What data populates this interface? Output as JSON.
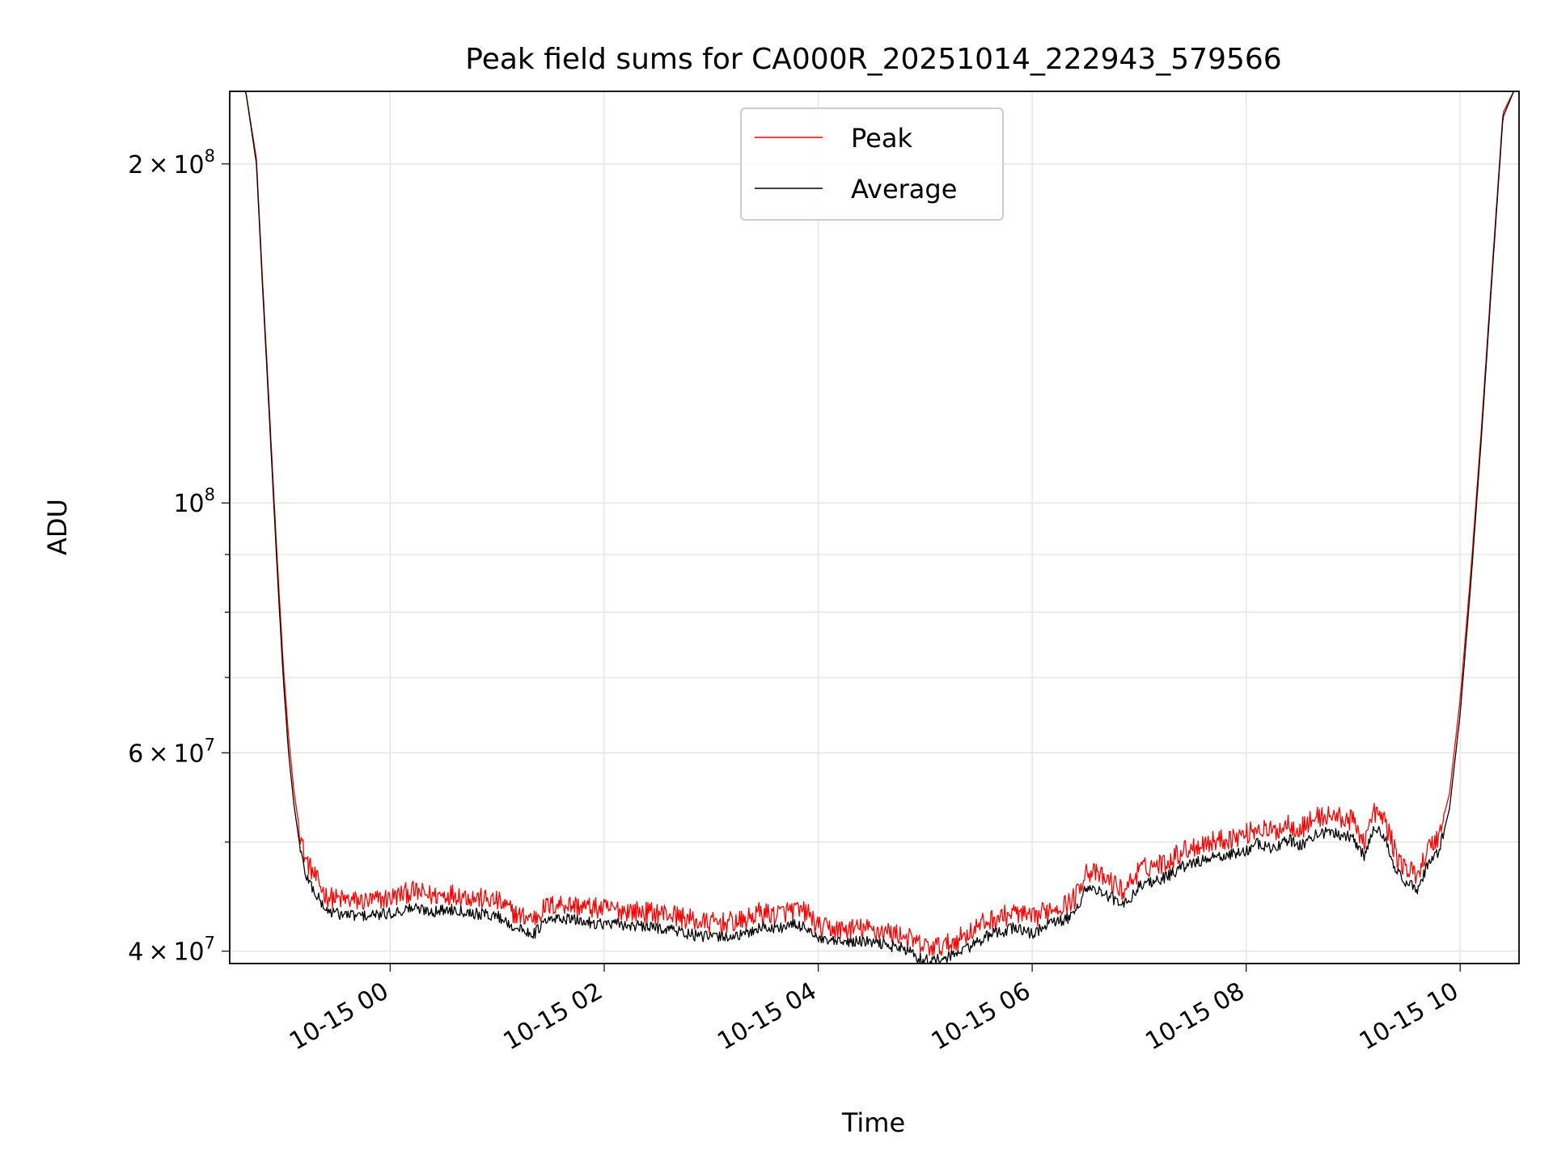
{
  "chart_data": {
    "type": "line",
    "title": "Peak field sums for CA000R_20251014_222943_579566",
    "xlabel": "Time",
    "ylabel": "ADU",
    "yscale": "log",
    "ylim": [
      39000000,
      232000000
    ],
    "xlim_hours": [
      -1.5,
      10.55
    ],
    "grid": true,
    "legend": {
      "placement": "upper center",
      "entries": [
        {
          "label": "Peak",
          "color": "#ff0000"
        },
        {
          "label": "Average",
          "color": "#000000"
        }
      ]
    },
    "x_ticks": [
      {
        "hours": 0,
        "label": "10-15 00"
      },
      {
        "hours": 2,
        "label": "10-15 02"
      },
      {
        "hours": 4,
        "label": "10-15 04"
      },
      {
        "hours": 6,
        "label": "10-15 06"
      },
      {
        "hours": 8,
        "label": "10-15 08"
      },
      {
        "hours": 10,
        "label": "10-15 10"
      }
    ],
    "y_major_ticks": [
      {
        "value": 40000000,
        "mantissa": "4",
        "exponent": "7"
      },
      {
        "value": 60000000,
        "mantissa": "6",
        "exponent": "7"
      },
      {
        "value": 100000000,
        "mantissa": "",
        "exponent": "8"
      },
      {
        "value": 200000000,
        "mantissa": "2",
        "exponent": "8"
      }
    ],
    "y_minor_ticks": [
      50000000,
      70000000,
      80000000,
      90000000
    ],
    "series": [
      {
        "name": "Average",
        "color": "#000000",
        "x_hours": [
          -1.5,
          -1.35,
          -1.25,
          -1.2,
          -1.15,
          -1.1,
          -1.05,
          -1.0,
          -0.95,
          -0.9,
          -0.85,
          -0.8,
          -0.75,
          -0.7,
          -0.6,
          -0.5,
          -0.4,
          -0.3,
          -0.2,
          0.0,
          0.2,
          0.4,
          0.6,
          0.8,
          1.0,
          1.2,
          1.35,
          1.45,
          1.6,
          1.8,
          2.0,
          2.2,
          2.4,
          2.6,
          2.8,
          2.9,
          3.1,
          3.3,
          3.45,
          3.6,
          3.75,
          3.9,
          4.0,
          4.2,
          4.4,
          4.6,
          4.8,
          4.95,
          5.05,
          5.2,
          5.4,
          5.55,
          5.7,
          5.85,
          6.0,
          6.15,
          6.3,
          6.4,
          6.5,
          6.6,
          6.75,
          6.85,
          7.0,
          7.1,
          7.25,
          7.4,
          7.6,
          7.8,
          8.0,
          8.1,
          8.25,
          8.4,
          8.5,
          8.65,
          8.8,
          9.0,
          9.1,
          9.2,
          9.3,
          9.4,
          9.5,
          9.6,
          9.7,
          9.8,
          9.9,
          10.0,
          10.1,
          10.2,
          10.3,
          10.4,
          10.5
        ],
        "values": [
          232000000,
          232000000,
          200000000,
          160000000,
          130000000,
          105000000,
          85000000,
          70000000,
          60000000,
          54000000,
          50000000,
          47000000,
          46000000,
          45000000,
          43500000,
          43200000,
          43100000,
          43000000,
          43000000,
          43200000,
          43700000,
          43400000,
          43600000,
          43200000,
          43000000,
          41800000,
          41500000,
          42500000,
          42800000,
          42500000,
          42300000,
          42200000,
          42000000,
          41900000,
          41400000,
          41200000,
          41200000,
          41300000,
          42000000,
          41900000,
          42200000,
          42000000,
          40900000,
          40700000,
          40800000,
          40600000,
          40200000,
          39400000,
          39200000,
          39400000,
          40300000,
          41100000,
          41600000,
          42000000,
          41400000,
          42300000,
          42600000,
          43200000,
          45600000,
          45300000,
          44600000,
          43800000,
          45700000,
          46100000,
          46500000,
          47500000,
          48200000,
          48600000,
          49100000,
          49800000,
          49300000,
          50300000,
          49600000,
          50800000,
          51000000,
          50500000,
          48500000,
          51500000,
          50600000,
          47200000,
          45800000,
          45500000,
          47800000,
          49000000,
          53500000,
          65000000,
          85000000,
          115000000,
          160000000,
          220000000,
          232000000
        ]
      },
      {
        "name": "Peak",
        "color": "#ff0000",
        "x_hours": [
          -1.5,
          -1.35,
          -1.25,
          -1.2,
          -1.15,
          -1.1,
          -1.05,
          -1.0,
          -0.95,
          -0.9,
          -0.85,
          -0.8,
          -0.75,
          -0.7,
          -0.6,
          -0.5,
          -0.4,
          -0.3,
          -0.2,
          0.0,
          0.2,
          0.4,
          0.6,
          0.8,
          1.0,
          1.2,
          1.35,
          1.45,
          1.6,
          1.8,
          2.0,
          2.2,
          2.4,
          2.6,
          2.8,
          2.9,
          3.1,
          3.3,
          3.45,
          3.6,
          3.75,
          3.9,
          4.0,
          4.2,
          4.4,
          4.6,
          4.8,
          4.95,
          5.05,
          5.2,
          5.4,
          5.55,
          5.7,
          5.85,
          6.0,
          6.15,
          6.3,
          6.4,
          6.5,
          6.6,
          6.75,
          6.85,
          7.0,
          7.1,
          7.25,
          7.4,
          7.6,
          7.8,
          8.0,
          8.1,
          8.25,
          8.4,
          8.5,
          8.65,
          8.8,
          9.0,
          9.1,
          9.2,
          9.3,
          9.4,
          9.5,
          9.6,
          9.7,
          9.8,
          9.9,
          10.0,
          10.1,
          10.2,
          10.3,
          10.4,
          10.5
        ],
        "values": [
          232000000,
          232000000,
          202000000,
          162000000,
          132000000,
          107000000,
          87000000,
          72000000,
          62000000,
          55500000,
          51500000,
          48500000,
          47500000,
          46500000,
          44800000,
          44500000,
          44400000,
          44300000,
          44300000,
          44600000,
          45200000,
          44800000,
          45000000,
          44600000,
          44300000,
          43000000,
          42800000,
          43800000,
          44100000,
          43800000,
          43600000,
          43500000,
          43300000,
          43200000,
          42700000,
          42400000,
          42400000,
          42500000,
          43300000,
          43100000,
          43500000,
          43300000,
          42000000,
          41800000,
          41900000,
          41700000,
          41300000,
          40500000,
          40300000,
          40500000,
          41500000,
          42400000,
          42900000,
          43300000,
          42700000,
          43600000,
          44000000,
          44600000,
          47200000,
          46800000,
          46000000,
          45200000,
          47200000,
          47600000,
          48000000,
          49100000,
          49900000,
          50300000,
          50800000,
          51500000,
          51000000,
          52000000,
          51300000,
          52600000,
          52800000,
          52200000,
          50100000,
          53200000,
          52200000,
          48700000,
          47200000,
          46900000,
          49300000,
          50600000,
          55200000,
          67000000,
          87000000,
          117000000,
          162000000,
          222000000,
          232000000
        ]
      }
    ]
  }
}
